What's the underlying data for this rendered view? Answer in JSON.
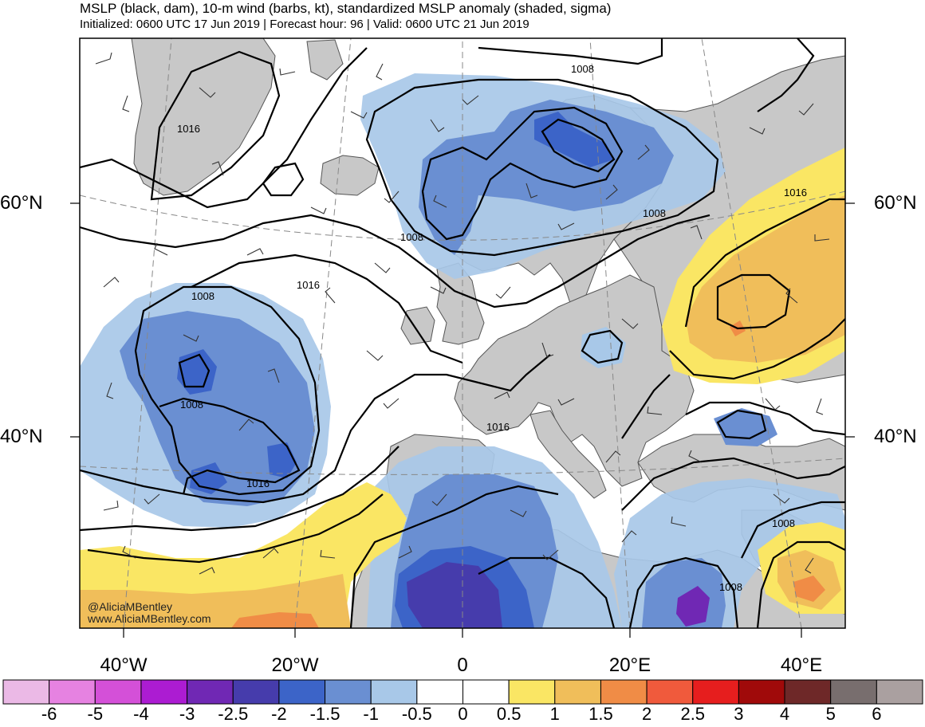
{
  "header": {
    "title": "MSLP (black, dam), 10-m wind (barbs, kt), standardized MSLP anomaly (shaded, sigma)",
    "subtitle": "Initialized: 0600 UTC 17 Jun 2019 | Forecast hour: 96 | Valid: 0600 UTC 21 Jun 2019"
  },
  "map": {
    "region": "North Atlantic and Europe",
    "lat_labels": {
      "lat60_left": "60°N",
      "lat60_right": "60°N",
      "lat40_left": "40°N",
      "lat40_right": "40°N"
    },
    "lon_labels": [
      "40°W",
      "20°W",
      "0",
      "20°E",
      "40°E"
    ],
    "isobar_labels": [
      "1016",
      "1008",
      "1016",
      "1008",
      "1008",
      "1016",
      "1008",
      "1008",
      "1016",
      "1016",
      "1008",
      "1008"
    ],
    "colors": {
      "ocean": "#ffffff",
      "land": "#c8c8c8",
      "coastline": "#555555",
      "isobar": "#000000",
      "gridline": "#888888"
    }
  },
  "credits": {
    "handle": "@AliciaMBentley",
    "website": "www.AliciaMBentley.com"
  },
  "colorbar": {
    "labels": [
      "-6",
      "-5",
      "-4",
      "-3",
      "-2.5",
      "-2",
      "-1.5",
      "-1",
      "-0.5",
      "0",
      "0.5",
      "1",
      "1.5",
      "2",
      "2.5",
      "3",
      "4",
      "5",
      "6"
    ],
    "colors": [
      "#ebb9e6",
      "#e682e1",
      "#d450d8",
      "#ac1cd2",
      "#7028b4",
      "#463cac",
      "#3c64c8",
      "#6a8fd2",
      "#a8c8e8",
      "#ffffff",
      "#ffffff",
      "#fae664",
      "#f0be5a",
      "#f08c46",
      "#f05a3c",
      "#e61e1e",
      "#a00a0a",
      "#6e2828",
      "#786e6e",
      "#aaa0a0"
    ]
  }
}
